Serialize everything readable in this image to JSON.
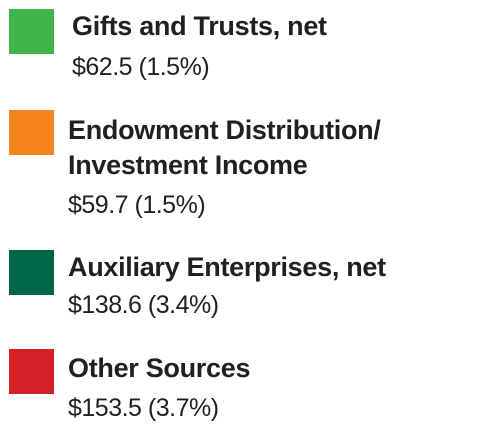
{
  "chart_data": {
    "type": "pie",
    "legend_placement": "list",
    "unit": "$",
    "items": [
      {
        "label_lines": [
          "Gifts and Trusts, net"
        ],
        "amount": 62.5,
        "percent": 1.5,
        "value_text": "$62.5 (1.5%)",
        "color": "#3db549"
      },
      {
        "label_lines": [
          "Endowment Distribution/",
          "Investment Income"
        ],
        "amount": 59.7,
        "percent": 1.5,
        "value_text": "$59.7 (1.5%)",
        "color": "#f6851f"
      },
      {
        "label_lines": [
          "Auxiliary Enterprises, net"
        ],
        "amount": 138.6,
        "percent": 3.4,
        "value_text": "$138.6 (3.4%)",
        "color": "#00664a"
      },
      {
        "label_lines": [
          "Other Sources"
        ],
        "amount": 153.5,
        "percent": 3.7,
        "value_text": "$153.5 (3.7%)",
        "color": "#d71f26"
      }
    ]
  }
}
